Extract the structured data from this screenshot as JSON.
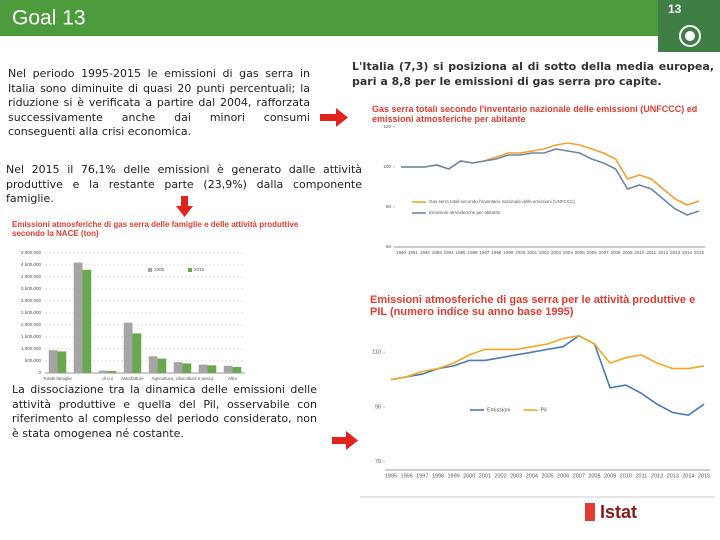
{
  "header": {
    "title": "Goal 13",
    "badge": "13"
  },
  "paragraphs": [
    "Nel periodo 1995-2015 le emissioni di gas serra in Italia sono diminuite di quasi 20 punti percentuali; la riduzione si è verificata a partire dal 2004, rafforzata successivamente anche dai minori consumi conseguenti alla crisi economica.",
    "L'Italia (7,3) si posiziona al di sotto della media europea, pari a 8,8 per le emissioni di gas serra pro capite.",
    "Nel 2015 il 76,1% delle emissioni è generato dalle attività produttive e la restante parte (23,9%) dalla componente famiglie.",
    "La dissociazione tra la dinamica delle emissioni delle attività produttive e quella del Pil, osservabile con riferimento al complesso del periodo considerato, non è stata omogenea né costante."
  ],
  "chart_data": [
    {
      "type": "bar",
      "title": "Emissioni atmosferiche di gas serra delle famiglie e delle attività produttive secondo la NACE (ton)",
      "categories": [
        "Totale famiglie",
        null,
        "di cui",
        "Manifatture",
        null,
        "Agricoltura, silvicoltura e pesca",
        null,
        "Altro"
      ],
      "series": [
        {
          "name": "2008",
          "color": "#a5a5a5",
          "values": [
            950000,
            4600000,
            100000,
            2100000,
            700000,
            450000,
            350000,
            300000
          ]
        },
        {
          "name": "2015",
          "color": "#6aa84f",
          "values": [
            900000,
            4300000,
            80000,
            1650000,
            600000,
            400000,
            320000,
            250000
          ]
        }
      ],
      "ylim": [
        0,
        5000000
      ],
      "yticks": [
        {
          "value": 0,
          "label": "0"
        },
        {
          "value": 500000,
          "label": "500.000"
        },
        {
          "value": 1000000,
          "label": "1.000.000"
        },
        {
          "value": 1500000,
          "label": "1.500.000"
        },
        {
          "value": 2000000,
          "label": "2.000.000"
        },
        {
          "value": 2500000,
          "label": "2.500.000"
        },
        {
          "value": 3000000,
          "label": "3.000.000"
        },
        {
          "value": 3500000,
          "label": "3.500.000"
        },
        {
          "value": 4000000,
          "label": "4.000.000"
        },
        {
          "value": 4500000,
          "label": "4.500.000"
        },
        {
          "value": 5000000,
          "label": "5.000.000"
        }
      ],
      "grid": true
    },
    {
      "type": "line",
      "title": "Gas serra totali secondo l'inventario nazionale delle emissioni (UNFCCC) ed emissioni atmosferiche per abitante",
      "x": [
        1990,
        1991,
        1992,
        1993,
        1994,
        1995,
        1996,
        1997,
        1998,
        1999,
        2000,
        2001,
        2002,
        2003,
        2004,
        2005,
        2006,
        2007,
        2008,
        2009,
        2010,
        2011,
        2012,
        2013,
        2014,
        2015
      ],
      "xlim": [
        1990,
        2015
      ],
      "series": [
        {
          "name": "Gas serra totali secondo l'inventario nazionale delle emissioni (UNFCCC)",
          "color": "#f0a030",
          "values": [
            100,
            100,
            100,
            101,
            99,
            103,
            102,
            103,
            105,
            107,
            107,
            108,
            109,
            111,
            112,
            111,
            109,
            107,
            104,
            94,
            96,
            94,
            89,
            84,
            81,
            83
          ]
        },
        {
          "name": "Emissioni atmosferiche per abitante",
          "color": "#6d87a8",
          "values": [
            100,
            100,
            100,
            101,
            99,
            103,
            102,
            103,
            104,
            106,
            106,
            107,
            107,
            109,
            108,
            107,
            104,
            102,
            99,
            89,
            91,
            89,
            84,
            79,
            76,
            78
          ]
        }
      ],
      "ylim": [
        60,
        120
      ],
      "yticks": [
        60,
        80,
        100,
        120
      ],
      "grid": false
    },
    {
      "type": "line",
      "title": "Emissioni atmosferiche di gas serra per le attività produttive e PIL (numero indice su anno base 1995)",
      "x": [
        1995,
        1996,
        1997,
        1998,
        1999,
        2000,
        2001,
        2002,
        2003,
        2004,
        2005,
        2006,
        2007,
        2008,
        2009,
        2010,
        2011,
        2012,
        2013,
        2014,
        2015
      ],
      "xlim": [
        1995,
        2015
      ],
      "series": [
        {
          "name": "Emissioni",
          "color": "#4a7ab5",
          "values": [
            100,
            101,
            102,
            104,
            105,
            107,
            107,
            108,
            109,
            110,
            111,
            112,
            116,
            113,
            97,
            98,
            95,
            91,
            88,
            87,
            91
          ]
        },
        {
          "name": "Pil",
          "color": "#f5a623",
          "values": [
            100,
            101,
            103,
            104,
            106,
            109,
            111,
            111,
            111,
            112,
            113,
            115,
            116,
            113,
            106,
            108,
            109,
            106,
            104,
            104,
            105
          ]
        }
      ],
      "ylim": [
        67,
        117
      ],
      "yticks": [
        70,
        90,
        110
      ],
      "grid": false
    }
  ],
  "footer": {
    "logo": "Istat"
  }
}
